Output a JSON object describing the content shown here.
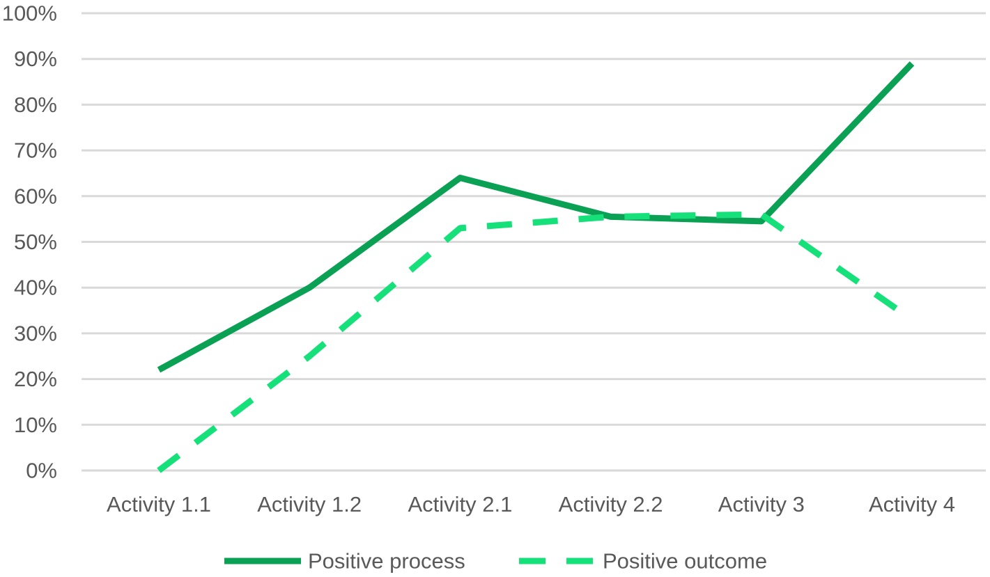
{
  "chart_data": {
    "type": "line",
    "title": "",
    "xlabel": "",
    "ylabel": "",
    "categories": [
      "Activity 1.1",
      "Activity 1.2",
      "Activity 2.1",
      "Activity 2.2",
      "Activity 3",
      "Activity 4"
    ],
    "ylim": [
      0,
      1
    ],
    "y_ticks": [
      "0%",
      "10%",
      "20%",
      "30%",
      "40%",
      "50%",
      "60%",
      "70%",
      "80%",
      "90%",
      "100%"
    ],
    "grid": true,
    "legend_position": "bottom",
    "series": [
      {
        "name": "Positive process",
        "values": [
          0.22,
          0.4,
          0.64,
          0.555,
          0.545,
          0.89
        ],
        "color": "#0AA154",
        "style": "solid"
      },
      {
        "name": "Positive outcome",
        "values": [
          0.0,
          0.25,
          0.53,
          0.555,
          0.56,
          0.33
        ],
        "color": "#16E07A",
        "style": "dashed"
      }
    ],
    "colors": {
      "grid": "#D9D9D9",
      "text": "#595959"
    }
  }
}
